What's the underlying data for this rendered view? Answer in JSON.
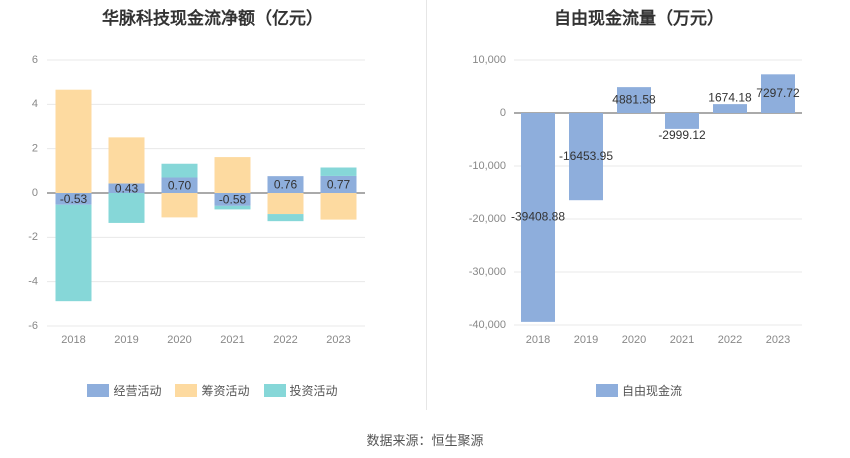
{
  "source_label": "数据来源：恒生聚源",
  "chart_data": [
    {
      "type": "bar",
      "title": "华脉科技现金流净额（亿元）",
      "categories": [
        "2018",
        "2019",
        "2020",
        "2021",
        "2022",
        "2023"
      ],
      "ylim": [
        -6,
        6
      ],
      "yticks": [
        -6,
        -4,
        -2,
        0,
        2,
        4,
        6
      ],
      "grid": true,
      "legend_position": "bottom",
      "series": [
        {
          "name": "经营活动",
          "color": "#8eaedc",
          "values": [
            -0.53,
            0.43,
            0.7,
            -0.58,
            0.76,
            0.77
          ]
        },
        {
          "name": "筹资活动",
          "color": "#fddaa0",
          "values": [
            4.66,
            2.08,
            -1.1,
            1.62,
            -0.95,
            -1.2
          ]
        },
        {
          "name": "投资活动",
          "color": "#86d7d8",
          "values": [
            -4.35,
            -1.35,
            0.62,
            -0.16,
            -0.32,
            0.38
          ]
        }
      ],
      "data_labels": [
        "-0.53",
        "0.43",
        "0.70",
        "-0.58",
        "0.76",
        "0.77"
      ]
    },
    {
      "type": "bar",
      "title": "自由现金流量（万元）",
      "categories": [
        "2018",
        "2019",
        "2020",
        "2021",
        "2022",
        "2023"
      ],
      "ylim": [
        -40000,
        10000
      ],
      "yticks": [
        -40000,
        -30000,
        -20000,
        -10000,
        0,
        10000
      ],
      "ytick_labels": [
        "-40,000",
        "-30,000",
        "-20,000",
        "-10,000",
        "0",
        "10,000"
      ],
      "grid": true,
      "legend_position": "bottom",
      "series": [
        {
          "name": "自由现金流",
          "color": "#8eaedc",
          "values": [
            -39408.88,
            -16453.95,
            4881.58,
            -2999.12,
            1674.18,
            7297.72
          ]
        }
      ],
      "data_labels": [
        "-39408.88",
        "-16453.95",
        "4881.58",
        "-2999.12",
        "1674.18",
        "7297.72"
      ]
    }
  ]
}
